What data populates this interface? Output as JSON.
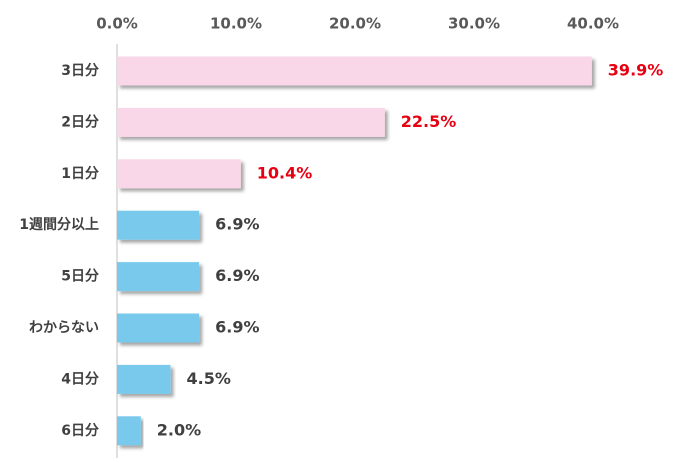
{
  "chart_data": {
    "type": "bar",
    "orientation": "horizontal",
    "title": "",
    "xlabel": "",
    "ylabel": "",
    "xlim": [
      0,
      40
    ],
    "x_ticks": [
      "0.0%",
      "10.0%",
      "20.0%",
      "30.0%",
      "40.0%"
    ],
    "x_axis_position": "top",
    "grid": false,
    "categories": [
      "3日分",
      "2日分",
      "1日分",
      "1週間分以上",
      "5日分",
      "わからない",
      "4日分",
      "6日分"
    ],
    "values": [
      39.9,
      22.5,
      10.4,
      6.9,
      6.9,
      6.9,
      4.5,
      2.0
    ],
    "value_labels": [
      "39.9%",
      "22.5%",
      "10.4%",
      "6.9%",
      "6.9%",
      "6.9%",
      "4.5%",
      "2.0%"
    ],
    "bar_colors": [
      "#f9d7e8",
      "#f9d7e8",
      "#f9d7e8",
      "#79c9ec",
      "#79c9ec",
      "#79c9ec",
      "#79c9ec",
      "#79c9ec"
    ],
    "label_colors": [
      "#e60012",
      "#e60012",
      "#e60012",
      "#404040",
      "#404040",
      "#404040",
      "#404040",
      "#404040"
    ]
  }
}
